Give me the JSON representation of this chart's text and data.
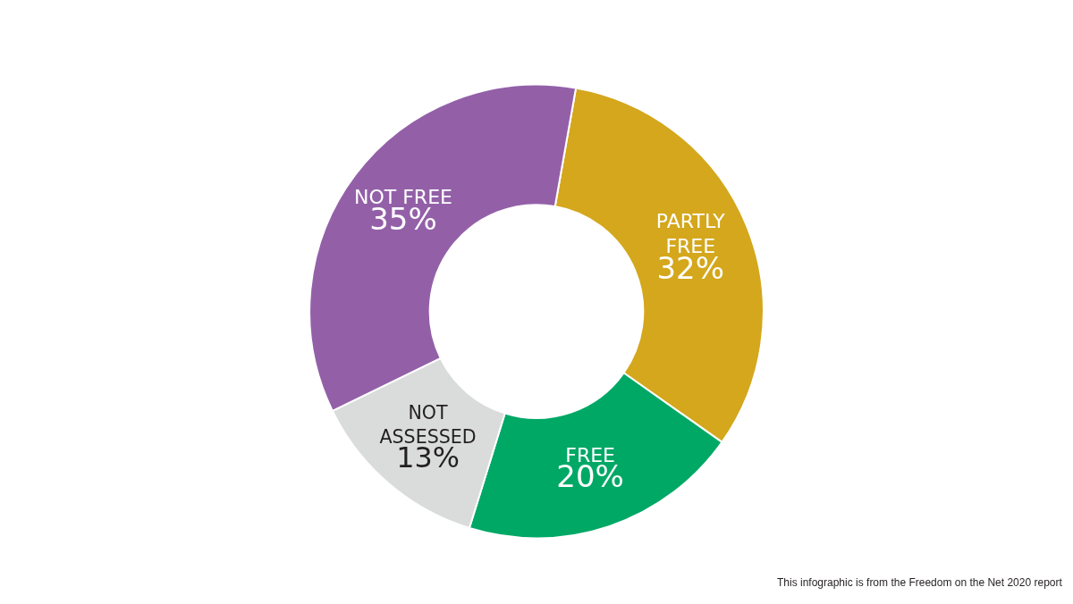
{
  "chart_data": {
    "type": "donut",
    "categories": [
      "PARTLY\nFREE",
      "FREE",
      "NOT\nASSESSED",
      "NOT FREE"
    ],
    "values": [
      32,
      20,
      13,
      35
    ],
    "value_labels": [
      "32%",
      "20%",
      "13%",
      "35%"
    ],
    "colors": [
      "#d4a71c",
      "#00a866",
      "#d9dcdb",
      "#9360a8"
    ],
    "legend": false,
    "annotations": [
      "This infographic is from the Freedom on the Net 2020 report"
    ]
  }
}
